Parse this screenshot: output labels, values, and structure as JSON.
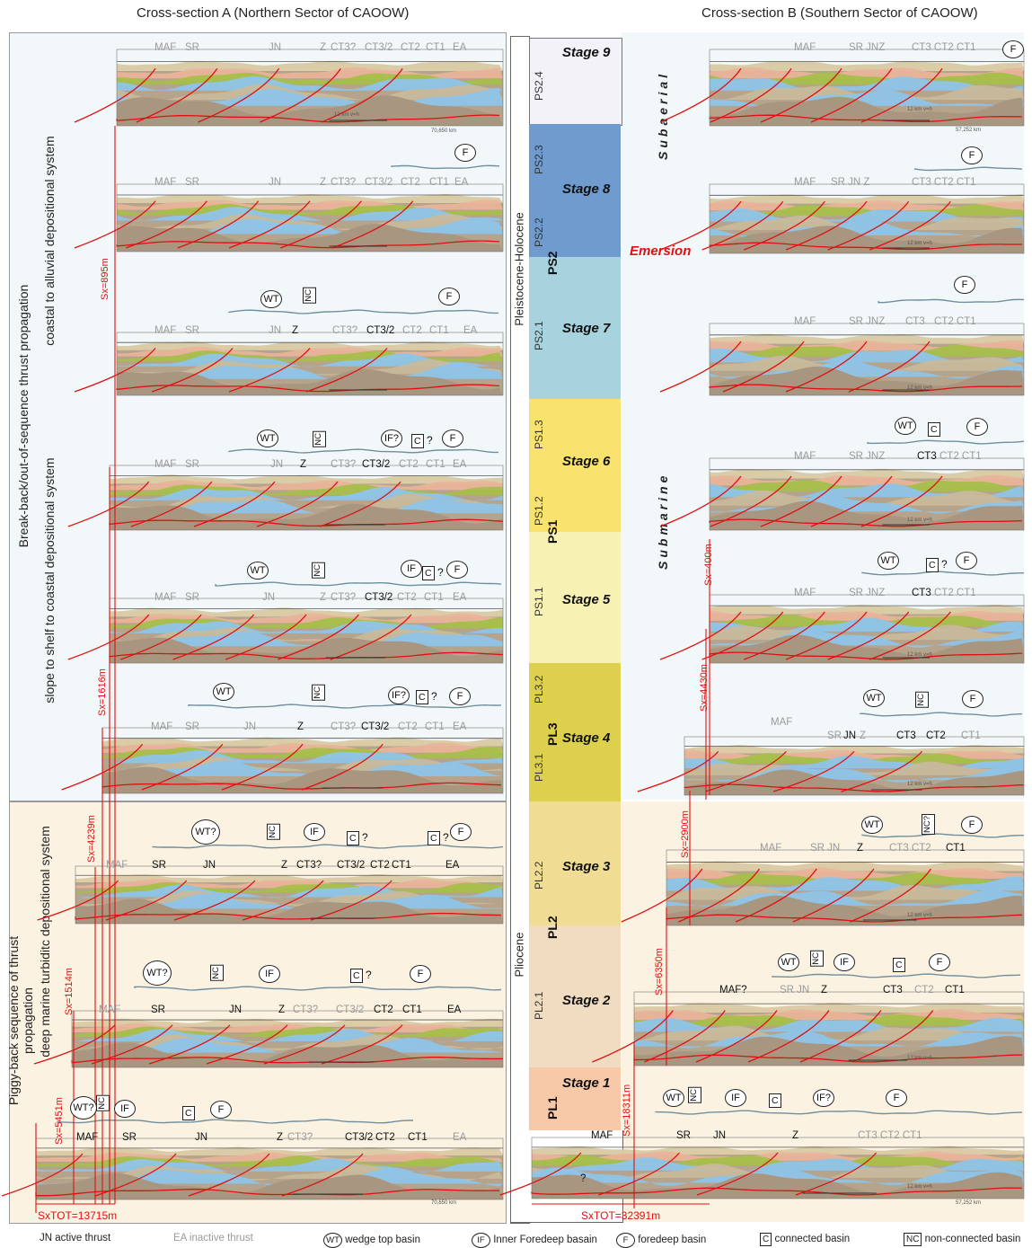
{
  "headers": {
    "section_a": "Cross-section A (Northern Sector of CAOOW)",
    "section_b": "Cross-section B (Southern Sector of CAOOW)"
  },
  "side_labels": {
    "upper": "Break-back/out-of-sequence thrust  propagation",
    "lower": "Piggy-back sequence of thrust propagation",
    "coastal": "coastal to alluvial depositional system",
    "slope": "slope to shelf to coastal depositional system",
    "deep": "deep marine turbiditc depositional system"
  },
  "column": {
    "pleistocene": "Pleistocene-Holocene",
    "pliocene": "Pliocene",
    "emersion": "Emersion",
    "subaerial": "Subaerial",
    "submarine": "Submarine",
    "stages": [
      {
        "name": "Stage 9",
        "sub": "PS2.4",
        "color": "#f2f2f8"
      },
      {
        "name": "Stage 8",
        "sub": "PS2.3",
        "sub2": "PS2.2",
        "color": "#6f9bcf"
      },
      {
        "name": "Stage 7",
        "sub": "PS2.1",
        "color": "#a7d3de"
      },
      {
        "name": "Stage 6",
        "sub": "PS1.3",
        "sub2": "PS1.2",
        "color": "#f9e26e"
      },
      {
        "name": "Stage 5",
        "sub": "PS1.1",
        "color": "#f8f1b4"
      },
      {
        "name": "Stage 4",
        "sub": "PL3.2",
        "sub2": "PL3.1",
        "color": "#dcd04c"
      },
      {
        "name": "Stage 3",
        "sub": "PL2.2",
        "color": "#f0dc92"
      },
      {
        "name": "Stage 2",
        "sub": "PL2.1",
        "color": "#efdcc1"
      },
      {
        "name": "Stage 1",
        "color": "#f8c9a8"
      }
    ],
    "groups": {
      "ps2": "PS2",
      "ps1": "PS1",
      "pl3": "PL3",
      "pl2": "PL2",
      "pl1": "PL1"
    }
  },
  "faults_a": [
    "MAF",
    "SR",
    "JN",
    "Z",
    "CT3?",
    "CT3/2",
    "CT2",
    "CT1",
    "EA"
  ],
  "faults_b": [
    "MAF",
    "SR",
    "JN",
    "Z",
    "CT3",
    "CT2",
    "CT1"
  ],
  "sx_a": [
    "Sx=895m",
    "Sx=1616m",
    "Sx=4239m",
    "Sx=1514m",
    "Sx=5451m"
  ],
  "sx_b": [
    "Sx=400m",
    "Sx=4430m",
    "Sx=2900m",
    "Sx=6350m",
    "Sx=18311m"
  ],
  "totals": {
    "a": "SxTOT=13715m",
    "b": "SxTOT=32391m"
  },
  "scales": {
    "km": "12 km v=h",
    "len_a": "70,650 km",
    "len_b": "57,252 km"
  },
  "annot": {
    "wt": "WT",
    "wtq": "WT?",
    "nc": "NC",
    "ncq": "NC?",
    "if": "IF",
    "ifq": "IF?",
    "c": "C",
    "f": "F",
    "q": "?",
    "b_stage9_1": "SR JNZ",
    "b_stage9_2": "CT3 CT2 CT1",
    "b_stage8_1": "SR  JN  Z",
    "b_stage8_2": "CT3 CT2 CT1",
    "b_stage7_1": "SR JNZ",
    "b_stage7_2": "CT3",
    "b_stage7_3": "CT2 CT1",
    "b_stage6_1": "SR JNZ",
    "b_stage6_2": "CT2 CT1",
    "b_stage5_1": "SR JNZ",
    "b_stage5_2": "CT2 CT1",
    "b_stage4_sr": "SR",
    "b_stage4_jn": "JN",
    "b_stage4_z": "Z",
    "b_stage3_1": "SR  JN",
    "b_stage3_2": "CT3 CT2",
    "b_stage2_maf": "MAF?",
    "b_stage2_srjn": "SR JN",
    "b_stage2_ct3": "CT3",
    "b_stage1_ct": "CT3  CT2  CT1"
  },
  "legend": {
    "active": "JN active thrust",
    "inactive": "EA inactive thrust",
    "wt": "wedge top basin",
    "if": "Inner Foredeep basain",
    "f": "foredeep basin",
    "c": "connected basin",
    "nc": "non-connected basin"
  },
  "colors": {
    "red": "#e01010",
    "blue": "#8ec4e8",
    "green": "#a6bf4a",
    "yellow": "#e8dd6a",
    "tan": "#b5a28a",
    "salmon": "#e9b49a"
  }
}
